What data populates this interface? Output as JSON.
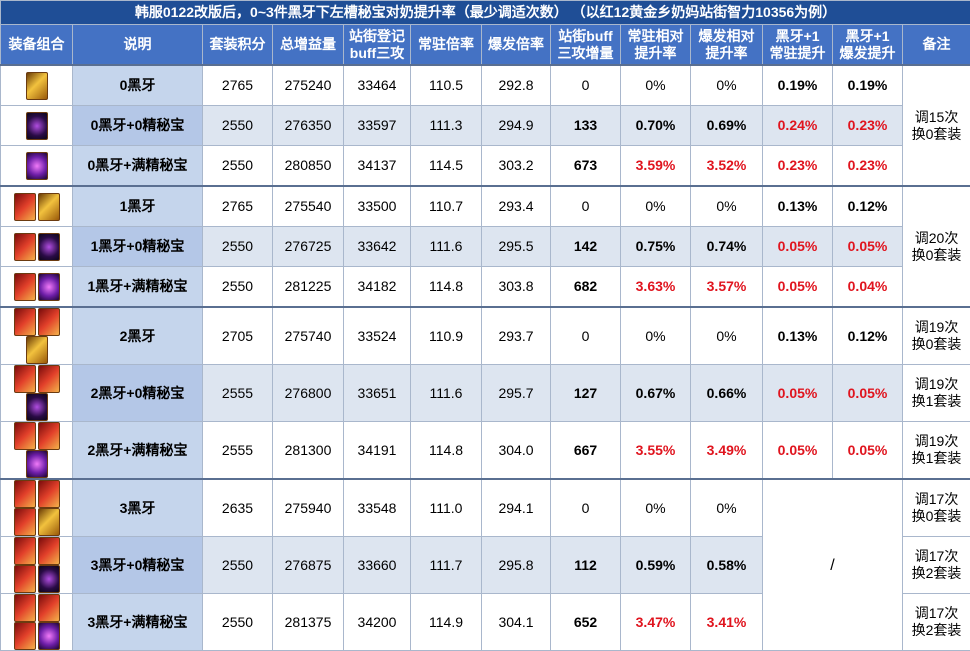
{
  "title": "韩服0122改版后，0~3件黑牙下左槽秘宝对奶提升率（最少调适次数）  （以红12黄金乡奶妈站街智力10356为例）",
  "headers": [
    "装备组合",
    "说明",
    "套装积分",
    "总增益量",
    "站街登记\nbuff三攻",
    "常驻倍率",
    "爆发倍率",
    "站街buff\n三攻增量",
    "常驻相对\n提升率",
    "爆发相对\n提升率",
    "黑牙+1\n常驻提升",
    "黑牙+1\n爆发提升",
    "备注"
  ],
  "groups": [
    {
      "remark": "调15次\n换0套装",
      "rows": [
        {
          "desc": "0黑牙",
          "values": [
            "2765",
            "275240",
            "33464",
            "110.5",
            "292.8",
            "0",
            "0%",
            "0%",
            "0.19%",
            "0.19%"
          ]
        },
        {
          "desc": "0黑牙+0精秘宝",
          "values": [
            "2550",
            "276350",
            "33597",
            "111.3",
            "294.9",
            "133",
            "0.70%",
            "0.69%",
            "0.24%",
            "0.23%"
          ]
        },
        {
          "desc": "0黑牙+满精秘宝",
          "values": [
            "2550",
            "280850",
            "34137",
            "114.5",
            "303.2",
            "673",
            "3.59%",
            "3.52%",
            "0.23%",
            "0.23%"
          ]
        }
      ]
    },
    {
      "remark": "调20次\n换0套装",
      "rows": [
        {
          "desc": "1黑牙",
          "values": [
            "2765",
            "275540",
            "33500",
            "110.7",
            "293.4",
            "0",
            "0%",
            "0%",
            "0.13%",
            "0.12%"
          ]
        },
        {
          "desc": "1黑牙+0精秘宝",
          "values": [
            "2550",
            "276725",
            "33642",
            "111.6",
            "295.5",
            "142",
            "0.75%",
            "0.74%",
            "0.05%",
            "0.05%"
          ]
        },
        {
          "desc": "1黑牙+满精秘宝",
          "values": [
            "2550",
            "281225",
            "34182",
            "114.8",
            "303.8",
            "682",
            "3.63%",
            "3.57%",
            "0.05%",
            "0.04%"
          ]
        }
      ]
    },
    {
      "rows": [
        {
          "desc": "2黑牙",
          "values": [
            "2705",
            "275740",
            "33524",
            "110.9",
            "293.7",
            "0",
            "0%",
            "0%",
            "0.13%",
            "0.12%"
          ],
          "remark": "调19次\n换0套装"
        },
        {
          "desc": "2黑牙+0精秘宝",
          "values": [
            "2555",
            "276800",
            "33651",
            "111.6",
            "295.7",
            "127",
            "0.67%",
            "0.66%",
            "0.05%",
            "0.05%"
          ],
          "remark": "调19次\n换1套装"
        },
        {
          "desc": "2黑牙+满精秘宝",
          "values": [
            "2555",
            "281300",
            "34191",
            "114.8",
            "304.0",
            "667",
            "3.55%",
            "3.49%",
            "0.05%",
            "0.05%"
          ],
          "remark": "调19次\n换1套装"
        }
      ]
    },
    {
      "plus1": "/",
      "rows": [
        {
          "desc": "3黑牙",
          "values": [
            "2635",
            "275940",
            "33548",
            "111.0",
            "294.1",
            "0",
            "0%",
            "0%"
          ],
          "remark": "调17次\n换0套装"
        },
        {
          "desc": "3黑牙+0精秘宝",
          "values": [
            "2550",
            "276875",
            "33660",
            "111.7",
            "295.8",
            "112",
            "0.59%",
            "0.58%"
          ],
          "remark": "调17次\n换2套装"
        },
        {
          "desc": "3黑牙+满精秘宝",
          "values": [
            "2550",
            "281375",
            "34200",
            "114.9",
            "304.1",
            "652",
            "3.47%",
            "3.41%"
          ],
          "remark": "调17次\n换2套装"
        }
      ]
    }
  ]
}
